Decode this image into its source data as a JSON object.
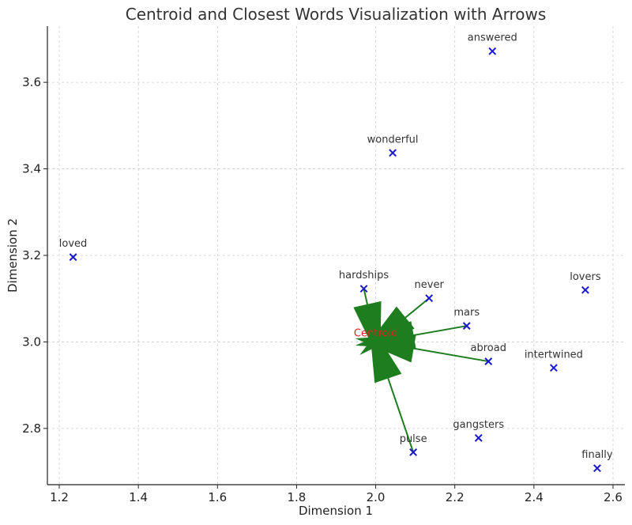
{
  "chart_data": {
    "type": "scatter",
    "title": "Centroid and Closest Words Visualization with Arrows",
    "xlabel": "Dimension 1",
    "ylabel": "Dimension 2",
    "xlim": [
      1.17,
      2.63
    ],
    "ylim": [
      2.67,
      3.73
    ],
    "xticks": [
      "1.2",
      "1.4",
      "1.6",
      "1.8",
      "2.0",
      "2.2",
      "2.4",
      "2.6"
    ],
    "yticks": [
      "2.8",
      "3.0",
      "3.2",
      "3.4",
      "3.6"
    ],
    "grid": true,
    "marker_color": "#1a1acc",
    "arrow_color": "#1e7d1e",
    "centroid_label_color": "#e01f1f",
    "centroid": {
      "label": "Centroid",
      "x": 2.0,
      "y": 3.0
    },
    "points": [
      {
        "label": "answered",
        "x": 2.295,
        "y": 3.672
      },
      {
        "label": "wonderful",
        "x": 2.043,
        "y": 3.437
      },
      {
        "label": "loved",
        "x": 1.235,
        "y": 3.196
      },
      {
        "label": "hardships",
        "x": 1.97,
        "y": 3.123
      },
      {
        "label": "never",
        "x": 2.135,
        "y": 3.101
      },
      {
        "label": "lovers",
        "x": 2.53,
        "y": 3.12
      },
      {
        "label": "mars",
        "x": 2.23,
        "y": 3.037
      },
      {
        "label": "abroad",
        "x": 2.285,
        "y": 2.955
      },
      {
        "label": "intertwined",
        "x": 2.45,
        "y": 2.94
      },
      {
        "label": "gangsters",
        "x": 2.26,
        "y": 2.778
      },
      {
        "label": "pulse",
        "x": 2.095,
        "y": 2.745
      },
      {
        "label": "finally",
        "x": 2.56,
        "y": 2.708
      }
    ],
    "arrows_to": [
      "hardships",
      "never",
      "mars",
      "abroad",
      "pulse"
    ]
  }
}
